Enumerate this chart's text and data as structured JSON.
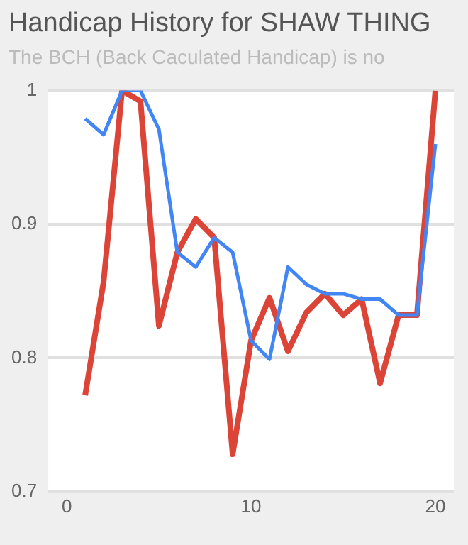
{
  "chart_data": {
    "type": "line",
    "title": "Handicap History for SHAW THING",
    "subtitle": "The BCH (Back Caculated Handicap) is no",
    "x": [
      1,
      2,
      3,
      4,
      5,
      6,
      7,
      8,
      9,
      10,
      11,
      12,
      13,
      14,
      15,
      16,
      17,
      18,
      19,
      20
    ],
    "series": [
      {
        "color": "#4285f4",
        "values": [
          0.979,
          0.967,
          1.0,
          1.0,
          0.971,
          0.879,
          0.868,
          0.89,
          0.879,
          0.813,
          0.799,
          0.868,
          0.855,
          0.848,
          0.848,
          0.844,
          0.844,
          0.832,
          0.832,
          0.96
        ]
      },
      {
        "color": "#db4437",
        "values": [
          0.772,
          0.857,
          1.0,
          0.992,
          0.824,
          0.879,
          0.904,
          0.89,
          0.728,
          0.813,
          0.845,
          0.805,
          0.834,
          0.848,
          0.832,
          0.844,
          0.781,
          0.832,
          0.832,
          1.0
        ]
      }
    ],
    "xlim": [
      -1,
      21
    ],
    "xticks": [
      0,
      10,
      20
    ],
    "ylim": [
      0.7,
      1
    ],
    "yticks": [
      0.7,
      0.8,
      0.9,
      1
    ],
    "grid": "y",
    "legend": false,
    "marker": "none",
    "line_style": "solid"
  }
}
